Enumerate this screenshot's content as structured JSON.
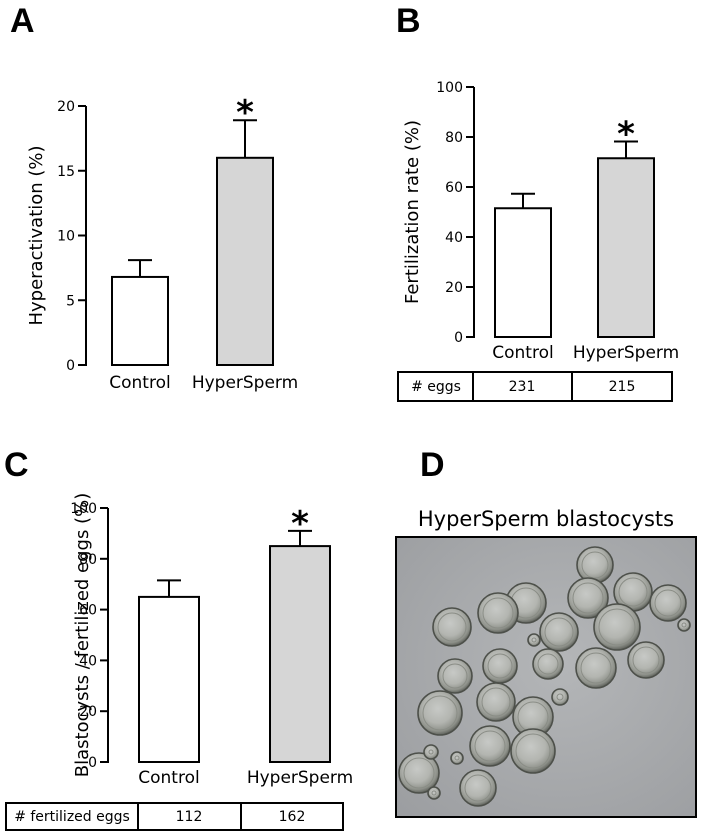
{
  "panels": {
    "A": {
      "letter": "A"
    },
    "B": {
      "letter": "B"
    },
    "C": {
      "letter": "C"
    },
    "D": {
      "letter": "D",
      "title": "HyperSperm blastocysts"
    }
  },
  "tables": {
    "B": {
      "header": "# eggs",
      "values": [
        "231",
        "215"
      ]
    },
    "C": {
      "header": "# fertilized eggs",
      "values": [
        "112",
        "162"
      ]
    }
  },
  "colors": {
    "control": "#ffffff",
    "hypersperm": "#d6d6d6",
    "axis": "#000000",
    "photo_bg": "#a9abad"
  },
  "chart_data": [
    {
      "id": "A",
      "type": "bar",
      "categories": [
        "Control",
        "HyperSperm"
      ],
      "values": [
        6.8,
        16.0
      ],
      "errors": [
        1.3,
        2.9
      ],
      "ylabel": "Hyperactivation (%)",
      "ylim": [
        0,
        20
      ],
      "yticks": [
        "0",
        "5",
        "10",
        "15",
        "20"
      ],
      "annotation": "*",
      "annotation_category": "HyperSperm"
    },
    {
      "id": "B",
      "type": "bar",
      "categories": [
        "Control",
        "HyperSperm"
      ],
      "values": [
        51.5,
        71.5
      ],
      "errors": [
        5.8,
        6.7
      ],
      "ylabel": "Fertilization rate (%)",
      "ylim": [
        0,
        100
      ],
      "yticks": [
        "0",
        "20",
        "40",
        "60",
        "80",
        "100"
      ],
      "annotation": "*",
      "annotation_category": "HyperSperm"
    },
    {
      "id": "C",
      "type": "bar",
      "categories": [
        "Control",
        "HyperSperm"
      ],
      "values": [
        65,
        85
      ],
      "errors": [
        6.5,
        6.0
      ],
      "ylabel": "Blastocysts / fertilized eggs (%)",
      "ylim": [
        0,
        100
      ],
      "yticks": [
        "0",
        "20",
        "40",
        "60",
        "80",
        "100"
      ],
      "annotation": "*",
      "annotation_category": "HyperSperm"
    }
  ]
}
